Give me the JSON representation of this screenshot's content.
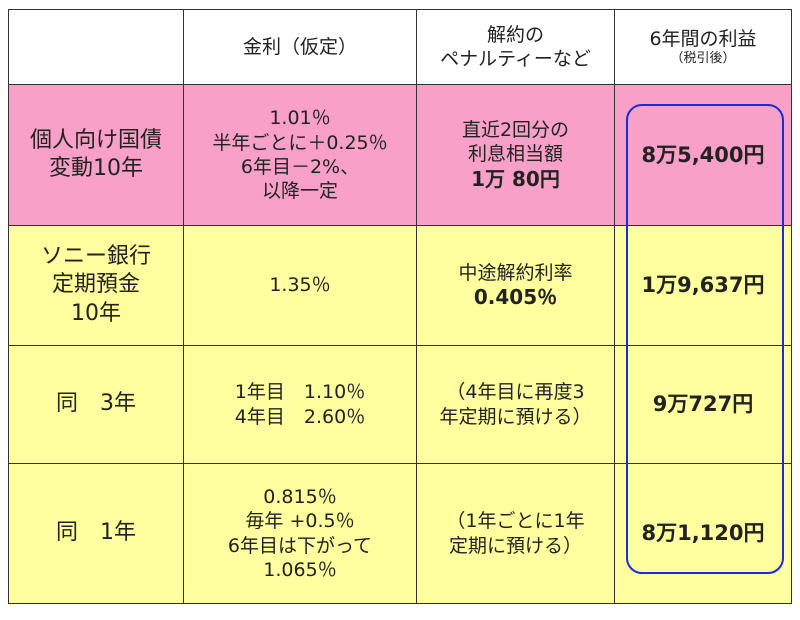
{
  "header": {
    "col2": "金利（仮定）",
    "col3_line1": "解約の",
    "col3_line2": "ペナルティーなど",
    "col4_line1": "6年間の利益",
    "col4_line2": "（税引後）"
  },
  "rows": [
    {
      "name_lines": [
        "個人向け国債",
        "変動10年"
      ],
      "rate_lines": [
        "1.01％",
        "半年ごとに＋0.25％",
        "6年目－2%、",
        "以降一定"
      ],
      "penalty_lines": [
        "直近2回分の",
        "利息相当額"
      ],
      "penalty_bold": "1万 80円",
      "profit": "8万5,400円"
    },
    {
      "name_lines": [
        "ソニー銀行",
        "定期預金",
        "10年"
      ],
      "rate_lines": [
        "1.35％"
      ],
      "penalty_lines": [
        "中途解約利率"
      ],
      "penalty_bold": "0.405％",
      "profit": "1万9,637円"
    },
    {
      "name_lines": [
        "同　3年"
      ],
      "rate_lines": [
        "1年目　1.10％",
        "4年目　2.60％"
      ],
      "penalty_lines": [
        "（4年目に再度3",
        "年定期に預ける）"
      ],
      "penalty_bold": "",
      "profit": "9万727円"
    },
    {
      "name_lines": [
        "同　1年"
      ],
      "rate_lines": [
        "0.815％",
        "毎年 +0.5％",
        "6年目は下がって",
        "1.065％"
      ],
      "penalty_lines": [
        "（1年ごとに1年",
        "定期に預ける）"
      ],
      "penalty_bold": "",
      "profit": "8万1,120円"
    }
  ]
}
